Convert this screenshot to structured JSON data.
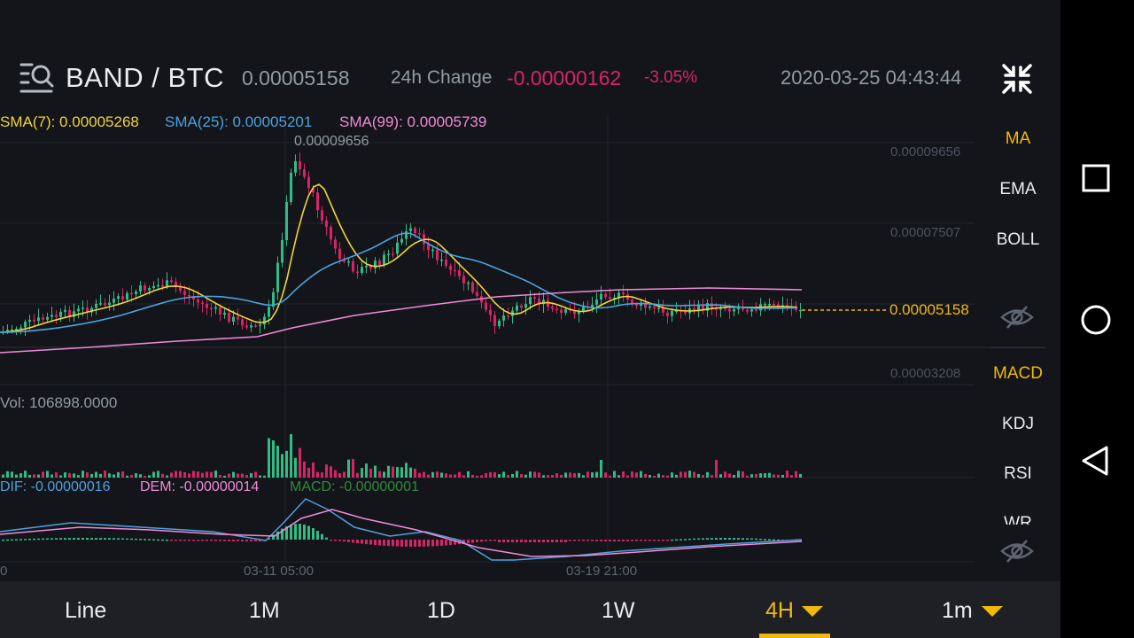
{
  "header": {
    "pair": "BAND / BTC",
    "last_price": "0.00005158",
    "change_label": "24h Change",
    "change_abs": "-0.00000162",
    "change_pct": "-3.05%",
    "datetime": "2020-03-25 04:43:44"
  },
  "indicators": {
    "sma7": "SMA(7): 0.00005268",
    "sma25": "SMA(25): 0.00005201",
    "sma99": "SMA(99): 0.00005739",
    "vol": "Vol: 106898.0000",
    "dif": "DIF: -0.00000016",
    "dem": "DEM: -0.00000014",
    "macd": "MACD: -0.00000001"
  },
  "price_axis": {
    "max_label": "0.00009656",
    "p1": "0.00009656",
    "p2": "0.00007507",
    "p3": "0.00003208",
    "current": "0.00005158"
  },
  "time_axis": [
    "03-11 05:00",
    "03-19 21:00",
    "0"
  ],
  "side_menu": {
    "main": [
      "MA",
      "EMA",
      "BOLL"
    ],
    "sub": [
      "MACD",
      "KDJ",
      "RSI",
      "WR"
    ]
  },
  "tabs": [
    "Line",
    "1M",
    "1D",
    "1W",
    "4H",
    "1m"
  ],
  "colors": {
    "accent": "#f0b90b",
    "up": "#2ebd85",
    "down": "#d82464",
    "sma7": "#f0d43a",
    "sma25": "#4aa3df",
    "sma99": "#f08ad6"
  },
  "chart_data": {
    "type": "candlestick",
    "price_range": [
      3.208e-05,
      9.656e-05
    ],
    "high": 9.656e-05,
    "current": 5.158e-05,
    "times": [
      "03-11 05:00",
      "03-19 21:00"
    ]
  }
}
